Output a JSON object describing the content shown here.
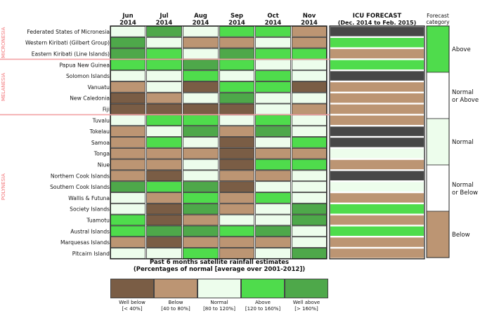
{
  "months": [
    {
      "label": "Jun",
      "year": "2014"
    },
    {
      "label": "Jul",
      "year": "2014"
    },
    {
      "label": "Aug",
      "year": "2014"
    },
    {
      "label": "Sep",
      "year": "2014"
    },
    {
      "label": "Oct",
      "year": "2014"
    },
    {
      "label": "Nov",
      "year": "2014"
    }
  ],
  "forecast_header": {
    "line1": "ICU FORECAST",
    "line2": "(Dec. 2014 to Feb. 2015)"
  },
  "category_header": {
    "line1": "Forecast",
    "line2": "category"
  },
  "regions": [
    "MICRONESIA",
    "MELANESIA",
    "POLYNESIA"
  ],
  "bottom_title": {
    "line1": "Past 6 months satellite rainfall estimates",
    "line2": "(Percentages of normal [average over 2001-2012])"
  },
  "legend": [
    {
      "code": "WB",
      "name": "Well below",
      "range": "[< 40%]"
    },
    {
      "code": "B",
      "name": "Below",
      "range": "[40 to 80%]"
    },
    {
      "code": "N",
      "name": "Normal",
      "range": "[80 to 120%]"
    },
    {
      "code": "A",
      "name": "Above",
      "range": "[120 to 160%]"
    },
    {
      "code": "WA",
      "name": "Well above",
      "range": "[> 160%]"
    }
  ],
  "forecast_categories": [
    {
      "code": "A",
      "line1": "Above",
      "line2": ""
    },
    {
      "code": "NA",
      "line1": "Normal",
      "line2": "or Above"
    },
    {
      "code": "N",
      "line1": "Normal",
      "line2": ""
    },
    {
      "code": "NB",
      "line1": "Normal",
      "line2": "or Below"
    },
    {
      "code": "B",
      "line1": "Below",
      "line2": ""
    }
  ],
  "colors": {
    "WB": "#7a5d45",
    "B": "#bc9573",
    "N": "#edfdec",
    "A": "#4fdc4c",
    "WA": "#4ea84a",
    "NODATA": "#474747",
    "region_text": "#f2777a",
    "separator": "#f3a3a5"
  },
  "chart_data": {
    "type": "table",
    "columns": [
      "Jun 2014",
      "Jul 2014",
      "Aug 2014",
      "Sep 2014",
      "Oct 2014",
      "Nov 2014",
      "ICU FORECAST (Dec. 2014 to Feb. 2015)"
    ],
    "rows": [
      {
        "name": "Federated States of Micronesia",
        "region": "MICRONESIA",
        "values": [
          "N",
          "WA",
          "N",
          "A",
          "A",
          "B"
        ],
        "forecast": "NODATA"
      },
      {
        "name": "Western Kiribati (Gilbert Group)",
        "region": "MICRONESIA",
        "values": [
          "WA",
          "N",
          "B",
          "B",
          "N",
          "B"
        ],
        "forecast": "A"
      },
      {
        "name": "Eastern Kiribati (Line Islands)",
        "region": "MICRONESIA",
        "values": [
          "WA",
          "A",
          "N",
          "WA",
          "A",
          "A"
        ],
        "forecast": "B"
      },
      {
        "name": "Papua New Guinea",
        "region": "MELANESIA",
        "values": [
          "A",
          "A",
          "WA",
          "A",
          "N",
          "N"
        ],
        "forecast": "A"
      },
      {
        "name": "Solomon Islands",
        "region": "MELANESIA",
        "values": [
          "N",
          "N",
          "A",
          "N",
          "A",
          "N"
        ],
        "forecast": "NODATA"
      },
      {
        "name": "Vanuatu",
        "region": "MELANESIA",
        "values": [
          "B",
          "N",
          "WB",
          "A",
          "A",
          "WB"
        ],
        "forecast": "B"
      },
      {
        "name": "New Caledonia",
        "region": "MELANESIA",
        "values": [
          "WB",
          "B",
          "N",
          "WA",
          "N",
          "N"
        ],
        "forecast": "B"
      },
      {
        "name": "Fiji",
        "region": "MELANESIA",
        "values": [
          "WB",
          "WB",
          "WB",
          "WB",
          "N",
          "B"
        ],
        "forecast": "B"
      },
      {
        "name": "Tuvalu",
        "region": "POLYNESIA",
        "values": [
          "N",
          "A",
          "A",
          "N",
          "A",
          "N"
        ],
        "forecast": "B"
      },
      {
        "name": "Tokelau",
        "region": "POLYNESIA",
        "values": [
          "B",
          "N",
          "WA",
          "B",
          "WA",
          "N"
        ],
        "forecast": "NODATA"
      },
      {
        "name": "Samoa",
        "region": "POLYNESIA",
        "values": [
          "B",
          "A",
          "N",
          "WB",
          "N",
          "A"
        ],
        "forecast": "NODATA"
      },
      {
        "name": "Tonga",
        "region": "POLYNESIA",
        "values": [
          "B",
          "B",
          "B",
          "WB",
          "B",
          "B"
        ],
        "forecast": "N"
      },
      {
        "name": "Niue",
        "region": "POLYNESIA",
        "values": [
          "B",
          "B",
          "N",
          "WB",
          "A",
          "A"
        ],
        "forecast": "B"
      },
      {
        "name": "Northern Cook Islands",
        "region": "POLYNESIA",
        "values": [
          "B",
          "WB",
          "N",
          "B",
          "B",
          "N"
        ],
        "forecast": "NODATA"
      },
      {
        "name": "Southern Cook Islands",
        "region": "POLYNESIA",
        "values": [
          "WA",
          "A",
          "WA",
          "WB",
          "N",
          "N"
        ],
        "forecast": "N"
      },
      {
        "name": "Wallis & Futuna",
        "region": "POLYNESIA",
        "values": [
          "N",
          "B",
          "A",
          "B",
          "A",
          "N"
        ],
        "forecast": "B"
      },
      {
        "name": "Society Islands",
        "region": "POLYNESIA",
        "values": [
          "N",
          "WB",
          "WA",
          "B",
          "N",
          "WA"
        ],
        "forecast": "A"
      },
      {
        "name": "Tuamotu",
        "region": "POLYNESIA",
        "values": [
          "A",
          "WB",
          "B",
          "N",
          "N",
          "WA"
        ],
        "forecast": "B"
      },
      {
        "name": "Austral Islands",
        "region": "POLYNESIA",
        "values": [
          "A",
          "WA",
          "WA",
          "A",
          "WA",
          "N"
        ],
        "forecast": "A"
      },
      {
        "name": "Marquesas Islands",
        "region": "POLYNESIA",
        "values": [
          "B",
          "WB",
          "B",
          "B",
          "B",
          "N"
        ],
        "forecast": "B"
      },
      {
        "name": "Pitcairn Island",
        "region": "POLYNESIA",
        "values": [
          "N",
          "N",
          "A",
          "B",
          "N",
          "WA"
        ],
        "forecast": "B"
      }
    ]
  }
}
